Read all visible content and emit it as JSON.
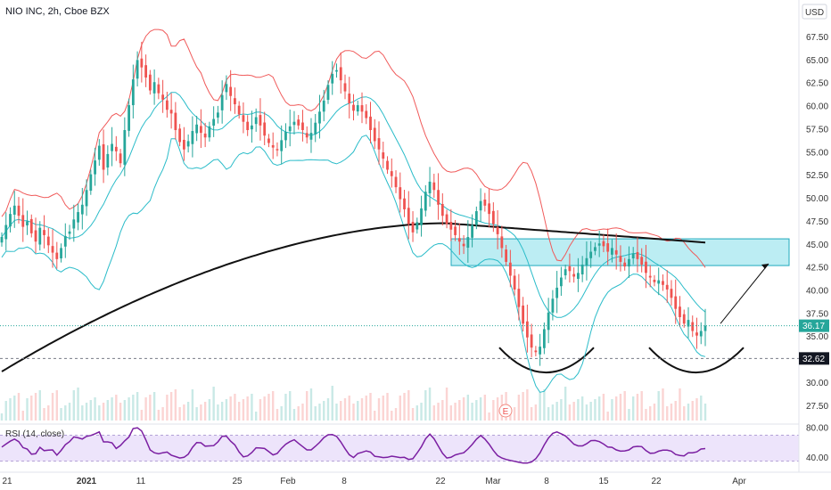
{
  "chart_data": {
    "type": "candlestick",
    "title": "NIO INC, 2h, Cboe BZX",
    "currency_button": "USD",
    "y_axis": {
      "ylim": [
        25.5,
        69.0
      ],
      "ticks": [
        "67.50",
        "65.00",
        "62.50",
        "60.00",
        "57.50",
        "55.00",
        "52.50",
        "50.00",
        "47.50",
        "45.00",
        "42.50",
        "40.00",
        "37.50",
        "35.00",
        "32.50",
        "30.00",
        "27.50"
      ]
    },
    "x_axis": {
      "ticks": [
        "21",
        "2021",
        "11",
        "25",
        "Feb",
        "8",
        "22",
        "Mar",
        "8",
        "15",
        "22",
        "Apr"
      ]
    },
    "last_price": "36.17",
    "marked_price": "32.62",
    "earnings_marker": "E",
    "colors": {
      "up": "#26a69a",
      "down": "#ef5350",
      "bb_upper": "#f05a5a",
      "bb_mid": "#2bbcc9",
      "ma": "#111111",
      "zone_fill": "#9fe6ee",
      "zone_stroke": "#1fa9bd",
      "rsi_line": "#7b1fa2",
      "rsi_band": "#ede4fb"
    },
    "closes": [
      45.8,
      47.1,
      48.3,
      49.2,
      48.1,
      46.9,
      47.5,
      46.2,
      45.3,
      46.8,
      46.0,
      44.9,
      44.1,
      43.4,
      44.6,
      45.9,
      46.4,
      47.7,
      48.5,
      49.3,
      50.9,
      52.6,
      54.1,
      55.7,
      53.1,
      54.8,
      55.9,
      55.1,
      53.8,
      57.4,
      60.1,
      62.9,
      65.0,
      64.2,
      63.1,
      61.7,
      62.6,
      61.4,
      60.7,
      59.6,
      59.2,
      57.4,
      56.1,
      55.3,
      56.2,
      57.3,
      58.0,
      57.1,
      56.6,
      57.8,
      58.6,
      59.3,
      61.2,
      62.4,
      61.1,
      60.2,
      59.1,
      58.3,
      57.4,
      57.9,
      58.8,
      57.9,
      56.8,
      56.0,
      55.5,
      55.2,
      56.3,
      57.2,
      57.8,
      58.3,
      57.9,
      57.4,
      56.6,
      57.1,
      58.2,
      59.4,
      60.6,
      62.3,
      63.5,
      63.9,
      62.8,
      61.6,
      60.3,
      59.5,
      60.1,
      59.4,
      58.7,
      57.4,
      56.2,
      55.3,
      54.3,
      53.1,
      52.4,
      51.2,
      49.9,
      48.8,
      47.2,
      46.3,
      47.4,
      48.9,
      50.7,
      51.8,
      50.9,
      49.3,
      48.1,
      47.2,
      46.6,
      46.0,
      45.3,
      44.8,
      45.8,
      47.1,
      48.6,
      49.7,
      49.2,
      48.3,
      47.2,
      46.1,
      44.6,
      43.1,
      41.6,
      40.1,
      38.2,
      36.4,
      34.9,
      33.8,
      33.3,
      33.9,
      35.8,
      37.6,
      39.1,
      40.3,
      41.4,
      42.3,
      42.1,
      41.5,
      41.9,
      42.8,
      43.5,
      44.2,
      44.7,
      45.1,
      44.8,
      44.2,
      44.6,
      43.9,
      43.1,
      42.6,
      43.4,
      44.0,
      43.4,
      42.8,
      41.9,
      41.4,
      40.9,
      41.1,
      40.6,
      40.1,
      39.2,
      38.0,
      37.1,
      36.4,
      36.8,
      35.6,
      35.1,
      35.6,
      36.17
    ],
    "shape_annotations": [
      "support/resistance zone 42.7-45.6",
      "rounded bottom",
      "rounded bottom",
      "projection arrow"
    ],
    "rsi": {
      "label": "RSI (14, close)",
      "upper_tick": "80.00",
      "lower_tick": "40.00",
      "ylim": [
        25,
        85
      ],
      "band": [
        35,
        70
      ]
    }
  }
}
